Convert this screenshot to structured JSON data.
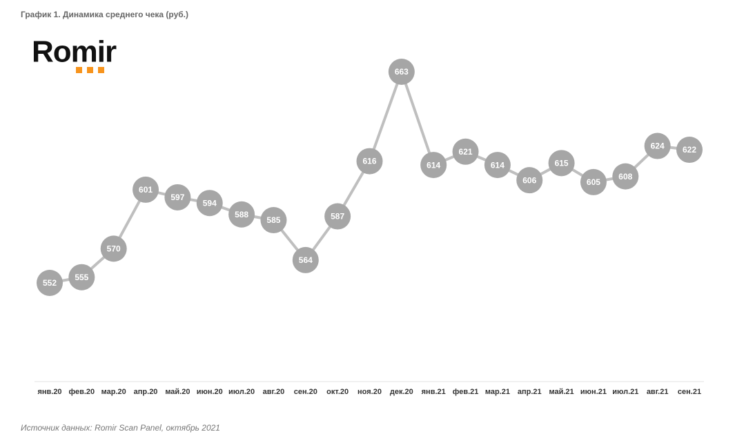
{
  "logo": "Romir",
  "source": "Источник данных: Romir Scan Panel, октябрь 2021",
  "chart_data": {
    "type": "line",
    "title": "График 1. Динамика среднего чека (руб.)",
    "categories": [
      "янв.20",
      "фев.20",
      "мар.20",
      "апр.20",
      "май.20",
      "июн.20",
      "июл.20",
      "авг.20",
      "сен.20",
      "окт.20",
      "ноя.20",
      "дек.20",
      "янв.21",
      "фев.21",
      "мар.21",
      "апр.21",
      "май.21",
      "июн.21",
      "июл.21",
      "авг.21",
      "сен.21"
    ],
    "values": [
      552,
      555,
      570,
      601,
      597,
      594,
      588,
      585,
      564,
      587,
      616,
      663,
      614,
      621,
      614,
      606,
      615,
      605,
      608,
      624,
      622
    ],
    "color": "#a6a6a6",
    "line_color": "#bfbfbf"
  }
}
